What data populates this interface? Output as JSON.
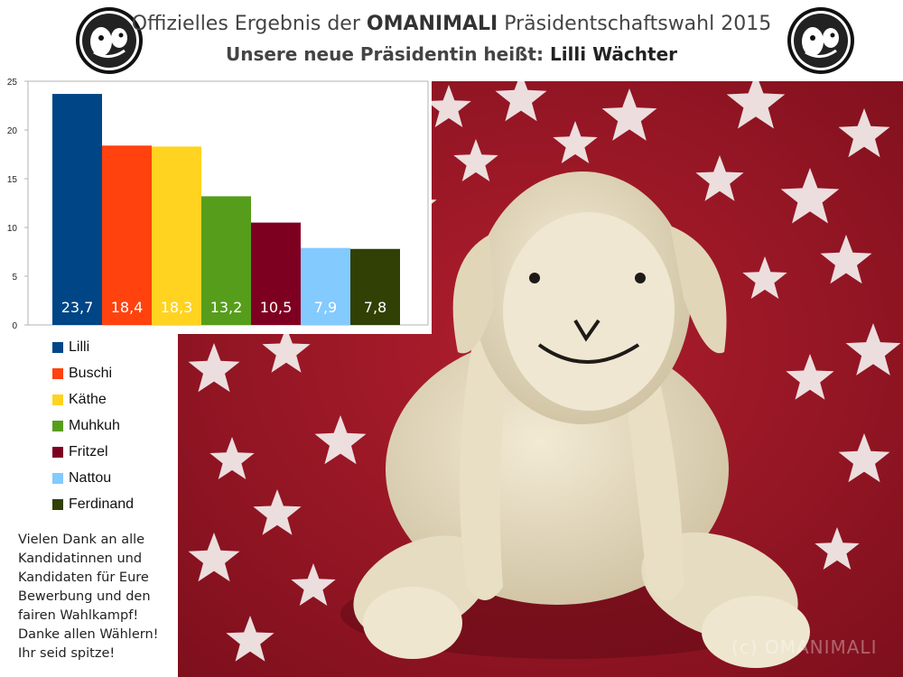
{
  "header": {
    "title_prefix": "Offizielles Ergebnis der ",
    "title_brand": "OMANIMALI",
    "title_suffix": " Präsidentschaftswahl 2015",
    "subtitle_prefix": "Unsere neue Präsidentin heißt: ",
    "subtitle_name": "Lilli Wächter"
  },
  "chart_data": {
    "type": "bar",
    "categories": [
      "Lilli",
      "Buschi",
      "Käthe",
      "Muhkuh",
      "Fritzel",
      "Nattou",
      "Ferdinand"
    ],
    "values": [
      23.7,
      18.4,
      18.3,
      13.2,
      10.5,
      7.9,
      7.8
    ],
    "value_labels": [
      "23,7",
      "18,4",
      "18,3",
      "13,2",
      "10,5",
      "7,9",
      "7,8"
    ],
    "colors": [
      "#004586",
      "#ff420e",
      "#ffd320",
      "#579d1c",
      "#7e0021",
      "#83caff",
      "#314004"
    ],
    "ylim": [
      0,
      25
    ],
    "yticks": [
      "0",
      "5",
      "10",
      "15",
      "20",
      "25"
    ],
    "grid": false,
    "legend_position": "below-left"
  },
  "thanks_text": [
    "Vielen Dank an alle",
    "Kandidatinnen und",
    "Kandidaten für Eure",
    "Bewerbung und den",
    "fairen Wahlkampf!",
    "Danke allen Wählern!",
    "Ihr seid spitze!"
  ],
  "watermark": "(c) OMANIMALI"
}
